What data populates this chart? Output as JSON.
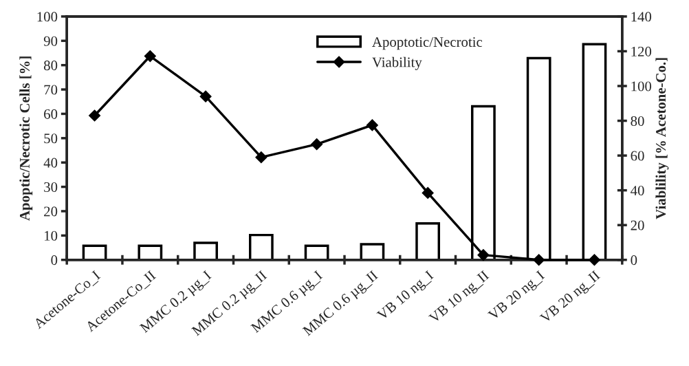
{
  "chart_data": {
    "type": "bar",
    "categories": [
      "Acetone-Co_I",
      "Acetone-Co_II",
      "MMC 0.2 µg_I",
      "MMC 0.2 µg_II",
      "MMC 0.6 µg_I",
      "MMC 0.6 µg_II",
      "VB 10 ng_I",
      "VB 10 ng_II",
      "VB 20 ng_I",
      "VB 20 ng_II"
    ],
    "series": [
      {
        "name": "Apoptotic/Necrotic",
        "color": "#ffffff",
        "values": [
          5.8,
          5.8,
          7.0,
          10.2,
          5.8,
          6.4,
          15.0,
          63.1,
          82.9,
          88.6
        ]
      },
      {
        "name": "Viability",
        "type": "line",
        "axis": "y2",
        "color": "#000000",
        "marker": "diamond",
        "line_style": "solid",
        "values": [
          83.0,
          117.2,
          94.0,
          59.0,
          66.5,
          77.5,
          38.5,
          2.8,
          0,
          0
        ]
      }
    ],
    "ylabel": "Apoptic/Necrotic Cells [%]",
    "y2label": "Viablility [% Acetone-Co.]",
    "ylim": [
      0,
      100
    ],
    "yticks": [
      0,
      10,
      20,
      30,
      40,
      50,
      60,
      70,
      80,
      90,
      100
    ],
    "y2lim": [
      0,
      140
    ],
    "y2ticks": [
      0,
      20,
      40,
      60,
      80,
      100,
      120,
      140
    ],
    "grid": false,
    "legend": "top"
  }
}
